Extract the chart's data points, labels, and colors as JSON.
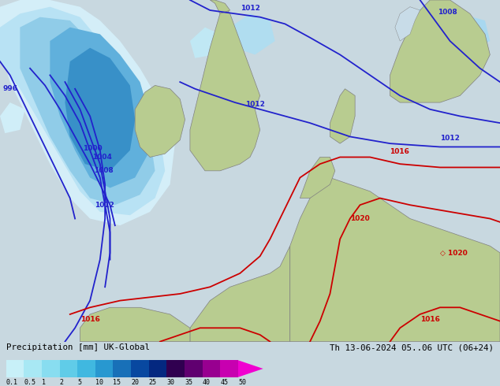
{
  "title_left": "Precipitation [mm] UK-Global",
  "title_right": "Th 13-06-2024 05..06 UTC (06+24)",
  "colorbar_labels": [
    "0.1",
    "0.5",
    "1",
    "2",
    "5",
    "10",
    "15",
    "20",
    "25",
    "30",
    "35",
    "40",
    "45",
    "50"
  ],
  "colorbar_colors": [
    "#c8f0f8",
    "#a8e8f4",
    "#88ddf0",
    "#60cce8",
    "#40b8e0",
    "#2898d0",
    "#1870b8",
    "#0848a0",
    "#042880",
    "#300050",
    "#600070",
    "#980090",
    "#c800b0",
    "#f000d0"
  ],
  "fig_width": 6.34,
  "fig_height": 4.9,
  "dpi": 100,
  "sea_color": "#c8dce8",
  "land_color": "#b8cc90",
  "legend_bg": "#c8d8e0",
  "border_color": "#808080",
  "blue_isobar": "#2222cc",
  "red_isobar": "#cc0000",
  "precip_light1": "#d0eff8",
  "precip_light2": "#b0e0f2",
  "precip_med1": "#80c8ea",
  "precip_med2": "#50a8d8",
  "precip_dark1": "#2888c0",
  "precip_dark2": "#1060a0"
}
